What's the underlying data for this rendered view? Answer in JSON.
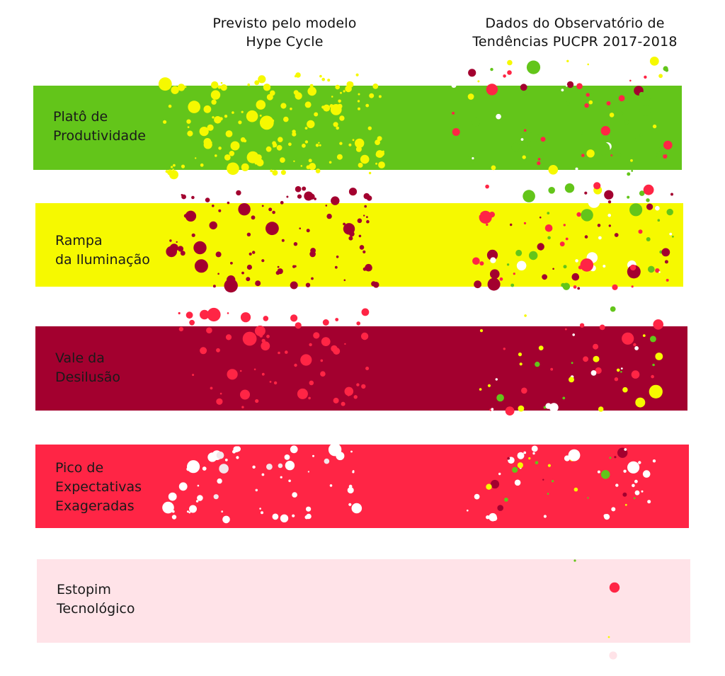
{
  "headers": {
    "left": [
      "Previsto pelo modelo",
      "Hype Cycle"
    ],
    "right": [
      "Dados do Observatório de",
      "Tendências PUCPR 2017-2018"
    ]
  },
  "colors": {
    "plato": "#63c51a",
    "rampa": "#f6f900",
    "vale": "#a3002f",
    "pico": "#ff2545",
    "estopim": "#ffe3e8"
  },
  "bands": [
    {
      "key": "plato",
      "lines": [
        "Platô de",
        "Produtividade"
      ]
    },
    {
      "key": "rampa",
      "lines": [
        "Rampa",
        "da Iluminação"
      ]
    },
    {
      "key": "vale",
      "lines": [
        "Vale da",
        "Desilusão"
      ]
    },
    {
      "key": "pico",
      "lines": [
        "Pico de",
        "Expectativas",
        "Exageradas"
      ]
    },
    {
      "key": "estopim",
      "lines": [
        "Estopim",
        "Tecnológico"
      ]
    }
  ],
  "chart_data": {
    "type": "scatter",
    "columns": [
      "Previsto pelo modelo Hype Cycle",
      "Dados do Observatório de Tendências PUCPR 2017-2018"
    ],
    "rows": [
      "Platô de Produtividade",
      "Rampa da Iluminação",
      "Vale da Desilusão",
      "Pico de Expectativas Exageradas",
      "Estopim Tecnológico"
    ],
    "legend": "none",
    "grid": false
  }
}
